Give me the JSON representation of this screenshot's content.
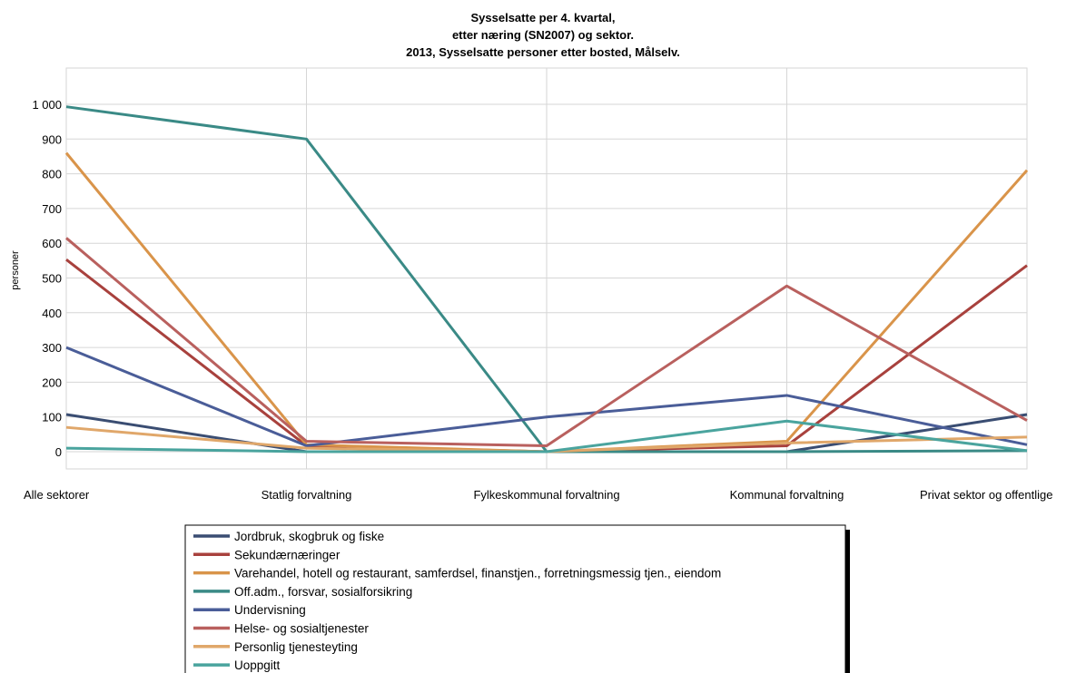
{
  "chart_data": {
    "type": "line",
    "title": [
      "Sysselsatte per 4. kvartal,",
      "etter næring (SN2007) og sektor.",
      "2013, Sysselsatte personer etter bosted, Målselv."
    ],
    "xlabel": "",
    "ylabel": "personer",
    "ylim": [
      0,
      1000
    ],
    "yticks": [
      0,
      100,
      200,
      300,
      400,
      500,
      600,
      700,
      800,
      900,
      1000
    ],
    "ytick_labels": [
      "0",
      "100",
      "200",
      "300",
      "400",
      "500",
      "600",
      "700",
      "800",
      "900",
      "1 000"
    ],
    "categories": [
      "Alle sektorer",
      "Statlig forvaltning",
      "Fylkeskommunal forvaltning",
      "Kommunal forvaltning",
      "Privat sektor og offentlige"
    ],
    "grid": true,
    "legend_position": "bottom",
    "series": [
      {
        "name": "Jordbruk, skogbruk og fiske",
        "color": "#3a4d72",
        "values": [
          107,
          0,
          0,
          0,
          107
        ]
      },
      {
        "name": "Sekundærnæringer",
        "color": "#a8413d",
        "values": [
          553,
          17,
          0,
          17,
          536
        ]
      },
      {
        "name": "Varehandel, hotell og restaurant, samferdsel, finanstjen., forretningsmessig tjen., eiendom",
        "color": "#d9944a",
        "values": [
          860,
          20,
          0,
          30,
          810
        ]
      },
      {
        "name": "Off.adm., forsvar, sosialforsikring",
        "color": "#3a8a86",
        "values": [
          993,
          900,
          0,
          0,
          3
        ]
      },
      {
        "name": "Undervisning",
        "color": "#4a5d98",
        "values": [
          300,
          17,
          100,
          162,
          20
        ]
      },
      {
        "name": "Helse- og sosialtjenester",
        "color": "#b9605e",
        "values": [
          615,
          30,
          17,
          477,
          90
        ]
      },
      {
        "name": "Personlig tjenesteyting",
        "color": "#e0a76a",
        "values": [
          70,
          10,
          0,
          25,
          42
        ]
      },
      {
        "name": "Uoppgitt",
        "color": "#4aa49e",
        "values": [
          10,
          0,
          0,
          88,
          3
        ]
      }
    ]
  }
}
